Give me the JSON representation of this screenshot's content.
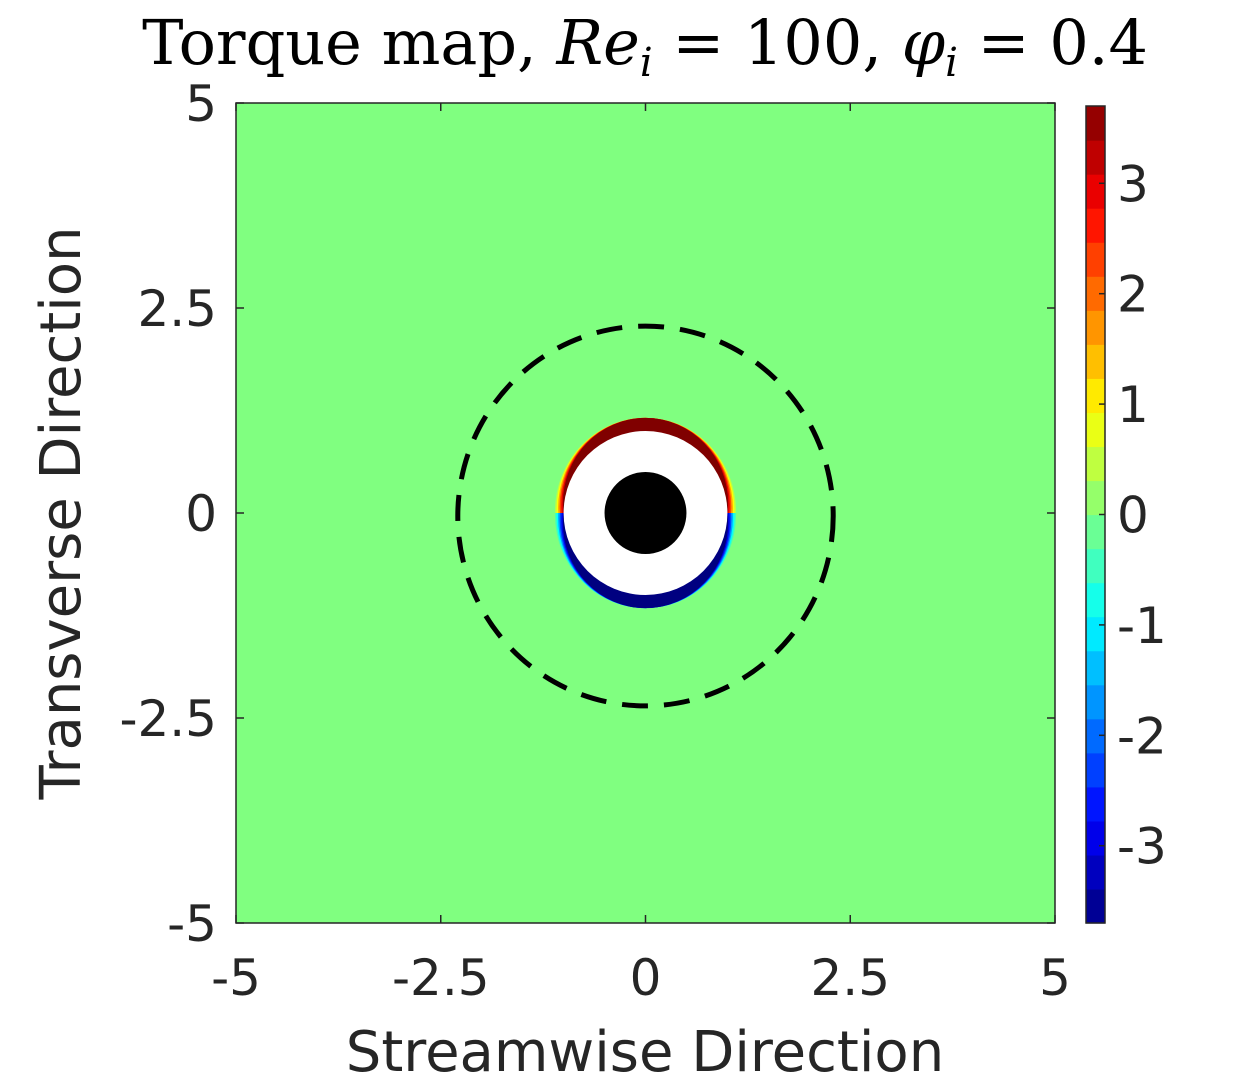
{
  "chart_data": {
    "type": "heatmap",
    "title": {
      "prefix": "Torque map, ",
      "re_symbol": "Re",
      "re_sub": "i",
      "re_value": " = 100, ",
      "phi_symbol": "φ",
      "phi_sub": "i",
      "phi_value": " = 0.4"
    },
    "xlabel": "Streamwise Direction",
    "ylabel": "Transverse Direction",
    "xlim": [
      -5,
      5
    ],
    "ylim": [
      -5,
      5
    ],
    "xticks": [
      -5,
      -2.5,
      0,
      2.5,
      5
    ],
    "xtick_labels": [
      "-5",
      "-2.5",
      "0",
      "2.5",
      "5"
    ],
    "yticks": [
      -5,
      -2.5,
      0,
      2.5,
      5
    ],
    "ytick_labels": [
      "-5",
      "-2.5",
      "0",
      "2.5",
      "5"
    ],
    "background_value": 0,
    "colorbar": {
      "colormap": "jet",
      "range": [
        -3.7,
        3.7
      ],
      "levels": 24,
      "ticks": [
        -3,
        -2,
        -1,
        0,
        1,
        2,
        3
      ],
      "tick_labels": [
        "-3",
        "-2",
        "-1",
        "0",
        "1",
        "2",
        "3"
      ]
    },
    "features": {
      "solid_particle": {
        "center": [
          0,
          0
        ],
        "radius": 0.5,
        "color": "#000000"
      },
      "excluded_zone": {
        "center": [
          0,
          0
        ],
        "radius": 1.0,
        "color": "#ffffff"
      },
      "influence_circle": {
        "center": [
          0,
          0
        ],
        "radius": 2.4,
        "style": "dashed",
        "color": "#000000"
      },
      "positive_band": {
        "side": "upper",
        "peak_value": 3.7
      },
      "negative_band": {
        "side": "lower",
        "peak_value": -3.7
      }
    },
    "grid": false
  }
}
